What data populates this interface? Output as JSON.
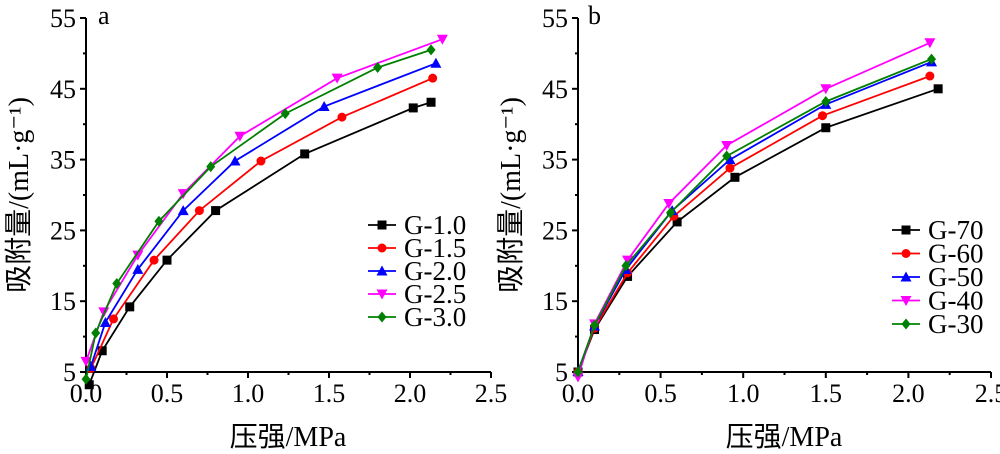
{
  "chart_data": [
    {
      "type": "line",
      "panel_label": "a",
      "xlabel": "压强/MPa",
      "ylabel": "吸附量/(mL·g⁻¹)",
      "xlim": [
        0,
        2.5
      ],
      "ylim": [
        5,
        55
      ],
      "xticks": [
        "0.0",
        "0.5",
        "1.0",
        "1.5",
        "2.0",
        "2.5"
      ],
      "yticks": [
        "5",
        "15",
        "25",
        "35",
        "45",
        "55"
      ],
      "grid": false,
      "legend_position": "bottom-right",
      "series": [
        {
          "name": "G-1.0",
          "color": "#000000",
          "marker": "square",
          "x": [
            0.02,
            0.1,
            0.27,
            0.5,
            0.8,
            1.35,
            2.02,
            2.13
          ],
          "y": [
            3.2,
            8.0,
            14.2,
            20.8,
            27.8,
            35.8,
            42.3,
            43.1
          ]
        },
        {
          "name": "G-1.5",
          "color": "#ff0000",
          "marker": "circle",
          "x": [
            0.03,
            0.17,
            0.42,
            0.7,
            1.08,
            1.58,
            2.14
          ],
          "y": [
            5.5,
            12.5,
            20.8,
            27.8,
            34.8,
            41.0,
            46.5
          ]
        },
        {
          "name": "G-2.0",
          "color": "#0000ff",
          "marker": "triangle-up",
          "x": [
            0.03,
            0.12,
            0.32,
            0.6,
            0.92,
            1.47,
            2.16
          ],
          "y": [
            5.8,
            12.0,
            19.5,
            27.8,
            34.8,
            42.5,
            48.6
          ]
        },
        {
          "name": "G-2.5",
          "color": "#ff00ff",
          "marker": "triangle-down",
          "x": [
            0.0,
            0.11,
            0.32,
            0.6,
            0.95,
            1.55,
            2.2
          ],
          "y": [
            6.5,
            13.5,
            21.5,
            30.2,
            38.3,
            46.5,
            52.0
          ]
        },
        {
          "name": "G-3.0",
          "color": "#008000",
          "marker": "diamond",
          "x": [
            0.0,
            0.06,
            0.19,
            0.45,
            0.77,
            1.23,
            1.8,
            2.13
          ],
          "y": [
            4.0,
            10.5,
            17.5,
            26.3,
            34.0,
            41.5,
            48.0,
            50.5
          ]
        }
      ]
    },
    {
      "type": "line",
      "panel_label": "b",
      "xlabel": "压强/MPa",
      "ylabel": "吸附量/(mL·g⁻¹)",
      "xlim": [
        0,
        2.5
      ],
      "ylim": [
        5,
        55
      ],
      "xticks": [
        "0.0",
        "0.5",
        "1.0",
        "1.5",
        "2.0",
        "2.5"
      ],
      "yticks": [
        "5",
        "15",
        "25",
        "35",
        "45",
        "55"
      ],
      "grid": false,
      "legend_position": "bottom-right",
      "series": [
        {
          "name": "G-70",
          "color": "#000000",
          "marker": "square",
          "x": [
            0.0,
            0.1,
            0.3,
            0.6,
            0.95,
            1.5,
            2.18
          ],
          "y": [
            5.0,
            11.0,
            18.5,
            26.2,
            32.5,
            39.5,
            45.0
          ]
        },
        {
          "name": "G-60",
          "color": "#ff0000",
          "marker": "circle",
          "x": [
            0.0,
            0.1,
            0.3,
            0.58,
            0.92,
            1.48,
            2.13
          ],
          "y": [
            5.0,
            11.2,
            19.0,
            27.0,
            33.8,
            41.2,
            46.8
          ]
        },
        {
          "name": "G-50",
          "color": "#0000ff",
          "marker": "triangle-up",
          "x": [
            0.0,
            0.1,
            0.29,
            0.57,
            0.92,
            1.5,
            2.14
          ],
          "y": [
            5.1,
            11.5,
            19.5,
            27.8,
            35.0,
            42.8,
            48.8
          ]
        },
        {
          "name": "G-40",
          "color": "#ff00ff",
          "marker": "triangle-down",
          "x": [
            0.0,
            0.1,
            0.3,
            0.55,
            0.9,
            1.5,
            2.13
          ],
          "y": [
            4.3,
            11.8,
            20.8,
            28.8,
            37.0,
            45.0,
            51.5
          ]
        },
        {
          "name": "G-30",
          "color": "#008000",
          "marker": "diamond",
          "x": [
            0.0,
            0.1,
            0.29,
            0.56,
            0.9,
            1.5,
            2.14
          ],
          "y": [
            5.0,
            11.6,
            20.0,
            27.5,
            35.5,
            43.2,
            49.2
          ]
        }
      ]
    }
  ]
}
